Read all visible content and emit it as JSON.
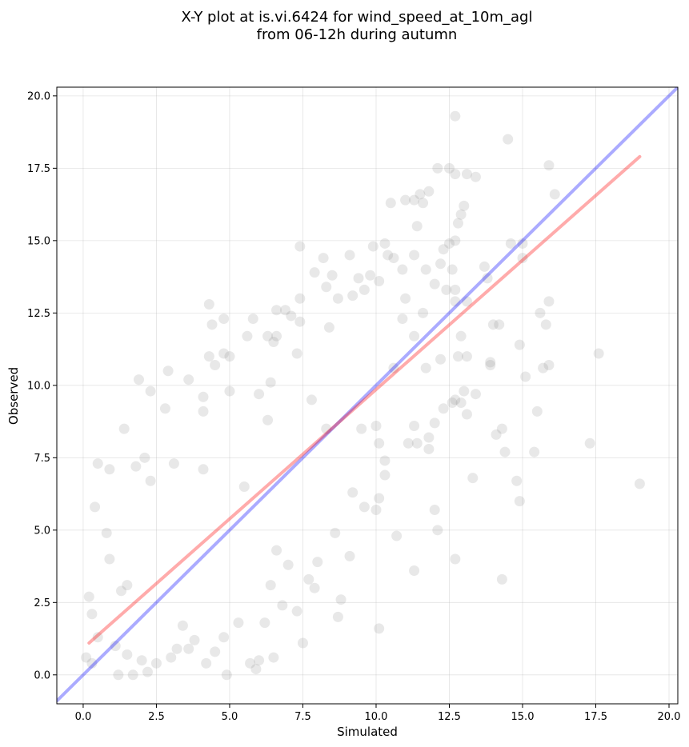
{
  "chart_data": {
    "type": "scatter",
    "title_lines": [
      "X-Y plot at is.vi.6424 for wind_speed_at_10m_agl",
      "from 06-12h during autumn"
    ],
    "xlabel": "Simulated",
    "ylabel": "Observed",
    "xlim": [
      -0.9,
      20.3
    ],
    "ylim": [
      -1.0,
      20.3
    ],
    "xticks": [
      0.0,
      2.5,
      5.0,
      7.5,
      10.0,
      12.5,
      15.0,
      17.5,
      20.0
    ],
    "yticks": [
      0.0,
      2.5,
      5.0,
      7.5,
      10.0,
      12.5,
      15.0,
      17.5,
      20.0
    ],
    "xtick_labels": [
      "0.0",
      "2.5",
      "5.0",
      "7.5",
      "10.0",
      "12.5",
      "15.0",
      "17.5",
      "20.0"
    ],
    "ytick_labels": [
      "0.0",
      "2.5",
      "5.0",
      "7.5",
      "10.0",
      "12.5",
      "15.0",
      "17.5",
      "20.0"
    ],
    "grid": true,
    "colors": {
      "points": "#808080",
      "identity_line": "#0000ff",
      "regression_line": "#ff0000"
    },
    "identity_line": {
      "x": [
        -0.9,
        20.3
      ],
      "y": [
        -0.9,
        20.3
      ]
    },
    "regression_line": {
      "x": [
        0.2,
        19.0
      ],
      "y": [
        1.1,
        17.9
      ]
    },
    "points": [
      [
        12.7,
        19.3
      ],
      [
        14.5,
        18.5
      ],
      [
        15.9,
        17.6
      ],
      [
        12.1,
        17.5
      ],
      [
        12.5,
        17.5
      ],
      [
        12.7,
        17.3
      ],
      [
        13.1,
        17.3
      ],
      [
        13.4,
        17.2
      ],
      [
        11.8,
        16.7
      ],
      [
        11.5,
        16.6
      ],
      [
        16.1,
        16.6
      ],
      [
        11.3,
        16.4
      ],
      [
        11.0,
        16.4
      ],
      [
        10.5,
        16.3
      ],
      [
        13.0,
        16.2
      ],
      [
        11.6,
        16.3
      ],
      [
        12.9,
        15.9
      ],
      [
        12.8,
        15.6
      ],
      [
        11.4,
        15.5
      ],
      [
        12.7,
        15.0
      ],
      [
        12.5,
        14.9
      ],
      [
        14.6,
        14.9
      ],
      [
        15.0,
        14.9
      ],
      [
        10.3,
        14.9
      ],
      [
        9.9,
        14.8
      ],
      [
        7.4,
        14.8
      ],
      [
        10.4,
        14.5
      ],
      [
        11.3,
        14.5
      ],
      [
        8.2,
        14.4
      ],
      [
        9.1,
        14.5
      ],
      [
        10.6,
        14.4
      ],
      [
        12.3,
        14.7
      ],
      [
        12.2,
        14.2
      ],
      [
        13.7,
        14.1
      ],
      [
        15.0,
        14.4
      ],
      [
        10.9,
        14.0
      ],
      [
        12.6,
        14.0
      ],
      [
        11.7,
        14.0
      ],
      [
        9.8,
        13.8
      ],
      [
        9.4,
        13.7
      ],
      [
        8.5,
        13.8
      ],
      [
        13.8,
        13.7
      ],
      [
        10.1,
        13.6
      ],
      [
        12.0,
        13.5
      ],
      [
        7.9,
        13.9
      ],
      [
        8.3,
        13.4
      ],
      [
        9.6,
        13.3
      ],
      [
        12.4,
        13.3
      ],
      [
        12.7,
        13.3
      ],
      [
        9.2,
        13.1
      ],
      [
        11.0,
        13.0
      ],
      [
        7.4,
        13.0
      ],
      [
        8.7,
        13.0
      ],
      [
        6.6,
        12.6
      ],
      [
        6.9,
        12.6
      ],
      [
        7.1,
        12.4
      ],
      [
        10.9,
        12.3
      ],
      [
        4.8,
        12.3
      ],
      [
        5.8,
        12.3
      ],
      [
        4.3,
        12.8
      ],
      [
        7.4,
        12.2
      ],
      [
        15.6,
        12.5
      ],
      [
        15.9,
        12.9
      ],
      [
        14.2,
        12.1
      ],
      [
        4.4,
        12.1
      ],
      [
        15.8,
        12.1
      ],
      [
        6.3,
        11.7
      ],
      [
        5.6,
        11.7
      ],
      [
        6.6,
        11.7
      ],
      [
        8.4,
        12.0
      ],
      [
        11.6,
        12.5
      ],
      [
        12.7,
        12.9
      ],
      [
        13.1,
        12.9
      ],
      [
        11.3,
        11.7
      ],
      [
        12.9,
        11.7
      ],
      [
        14.0,
        12.1
      ],
      [
        14.9,
        11.4
      ],
      [
        17.6,
        11.1
      ],
      [
        4.3,
        11.0
      ],
      [
        5.0,
        11.0
      ],
      [
        4.8,
        11.1
      ],
      [
        6.5,
        11.5
      ],
      [
        7.3,
        11.1
      ],
      [
        13.1,
        11.0
      ],
      [
        12.8,
        11.0
      ],
      [
        12.2,
        10.9
      ],
      [
        10.6,
        10.6
      ],
      [
        11.7,
        10.6
      ],
      [
        13.9,
        10.7
      ],
      [
        13.9,
        10.8
      ],
      [
        15.7,
        10.6
      ],
      [
        15.9,
        10.7
      ],
      [
        15.1,
        10.3
      ],
      [
        4.5,
        10.7
      ],
      [
        3.6,
        10.2
      ],
      [
        6.4,
        10.1
      ],
      [
        1.9,
        10.2
      ],
      [
        2.9,
        10.5
      ],
      [
        2.3,
        9.8
      ],
      [
        4.1,
        9.6
      ],
      [
        5.0,
        9.8
      ],
      [
        6.0,
        9.7
      ],
      [
        7.8,
        9.5
      ],
      [
        12.7,
        9.5
      ],
      [
        12.6,
        9.4
      ],
      [
        12.9,
        9.4
      ],
      [
        13.4,
        9.7
      ],
      [
        13.0,
        9.8
      ],
      [
        15.5,
        9.1
      ],
      [
        12.3,
        9.2
      ],
      [
        13.1,
        9.0
      ],
      [
        2.8,
        9.2
      ],
      [
        4.1,
        9.1
      ],
      [
        6.3,
        8.8
      ],
      [
        8.3,
        8.5
      ],
      [
        9.5,
        8.5
      ],
      [
        10.0,
        8.6
      ],
      [
        11.3,
        8.6
      ],
      [
        14.3,
        8.5
      ],
      [
        14.1,
        8.3
      ],
      [
        12.0,
        8.7
      ],
      [
        11.8,
        8.2
      ],
      [
        11.4,
        8.0
      ],
      [
        11.8,
        7.8
      ],
      [
        14.4,
        7.7
      ],
      [
        15.4,
        7.7
      ],
      [
        17.3,
        8.0
      ],
      [
        1.4,
        8.5
      ],
      [
        10.3,
        7.4
      ],
      [
        10.1,
        8.0
      ],
      [
        11.1,
        8.0
      ],
      [
        0.5,
        7.3
      ],
      [
        0.9,
        7.1
      ],
      [
        1.8,
        7.2
      ],
      [
        2.1,
        7.5
      ],
      [
        2.3,
        6.7
      ],
      [
        3.1,
        7.3
      ],
      [
        4.1,
        7.1
      ],
      [
        5.5,
        6.5
      ],
      [
        13.3,
        6.8
      ],
      [
        14.8,
        6.7
      ],
      [
        14.9,
        6.0
      ],
      [
        10.3,
        6.9
      ],
      [
        9.2,
        6.3
      ],
      [
        9.6,
        5.8
      ],
      [
        10.1,
        6.1
      ],
      [
        10.0,
        5.7
      ],
      [
        12.0,
        5.7
      ],
      [
        12.1,
        5.0
      ],
      [
        10.7,
        4.8
      ],
      [
        9.1,
        4.1
      ],
      [
        8.6,
        4.9
      ],
      [
        8.8,
        2.6
      ],
      [
        8.7,
        2.0
      ],
      [
        8.0,
        3.9
      ],
      [
        7.9,
        3.0
      ],
      [
        7.7,
        3.3
      ],
      [
        7.5,
        1.1
      ],
      [
        6.5,
        0.6
      ],
      [
        5.9,
        0.2
      ],
      [
        5.7,
        0.4
      ],
      [
        6.0,
        0.5
      ],
      [
        4.9,
        0.0
      ],
      [
        11.3,
        3.6
      ],
      [
        12.7,
        4.0
      ],
      [
        14.3,
        3.3
      ],
      [
        10.1,
        1.6
      ],
      [
        19.0,
        6.6
      ],
      [
        1.5,
        3.1
      ],
      [
        1.3,
        2.9
      ],
      [
        0.4,
        5.8
      ],
      [
        0.8,
        4.9
      ],
      [
        0.9,
        4.0
      ],
      [
        0.2,
        2.7
      ],
      [
        0.3,
        2.1
      ],
      [
        0.1,
        0.6
      ],
      [
        0.3,
        0.4
      ],
      [
        0.5,
        1.3
      ],
      [
        1.1,
        1.0
      ],
      [
        1.5,
        0.7
      ],
      [
        2.0,
        0.5
      ],
      [
        2.5,
        0.4
      ],
      [
        2.2,
        0.1
      ],
      [
        1.7,
        0.0
      ],
      [
        1.2,
        0.0
      ],
      [
        3.0,
        0.6
      ],
      [
        3.2,
        0.9
      ],
      [
        3.6,
        0.9
      ],
      [
        4.2,
        0.4
      ],
      [
        4.5,
        0.8
      ],
      [
        3.8,
        1.2
      ],
      [
        3.4,
        1.7
      ],
      [
        4.8,
        1.3
      ],
      [
        5.3,
        1.8
      ],
      [
        6.2,
        1.8
      ],
      [
        6.8,
        2.4
      ],
      [
        7.3,
        2.2
      ],
      [
        6.4,
        3.1
      ],
      [
        7.0,
        3.8
      ],
      [
        6.6,
        4.3
      ]
    ]
  }
}
